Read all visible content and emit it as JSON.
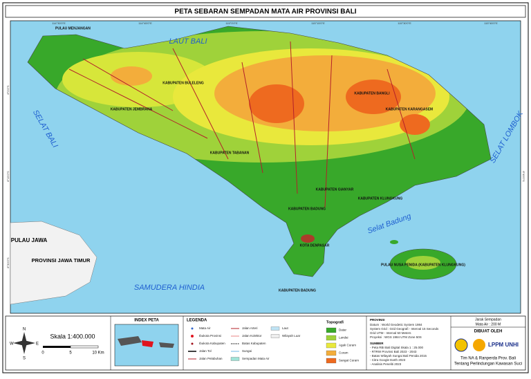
{
  "title": "PETA SEBARAN SEMPADAN MATA AIR PROVINSI BALI",
  "map": {
    "seas": [
      "LAUT BALI",
      "SELAT BALI",
      "SAMUDERA HINDIA",
      "SELAT LOMBOK",
      "Selat Badung"
    ],
    "java": [
      "PULAU JAWA",
      "PROVINSI JAWA TIMUR"
    ],
    "regions": [
      "PULAU MENJANGAN",
      "KABUPATEN BULELENG",
      "KABUPATEN JEMBRANA",
      "KABUPATEN TABANAN",
      "KABUPATEN BANGLI",
      "KABUPATEN KARANGASEM",
      "KABUPATEN GIANYAR",
      "KABUPATEN KLUNGKUNG",
      "KABUPATEN BADUNG",
      "KOTA DENPASAR",
      "PULAU NUSA PENIDA (KABUPATEN KLUNGKUNG)",
      "KABUPATEN BADUNG"
    ],
    "lon_ticks": [
      "114°30'0\"E",
      "114°45'0\"E",
      "115°0'0\"E",
      "115°15'0\"E",
      "115°30'0\"E",
      "115°45'0\"E"
    ],
    "lat_ticks": [
      "8°0'0\"S",
      "8°15'0\"S",
      "8°30'0\"S",
      "8°45'0\"S"
    ]
  },
  "scale": {
    "text": "Skala 1:400.000",
    "labels": [
      "0",
      "5",
      "10 Km"
    ]
  },
  "index": {
    "title": "INDEX PETA"
  },
  "legend": {
    "title": "LEGENDA",
    "items": [
      "Mata Air",
      "Ibukota Provinsi",
      "Ibukota Kabupaten",
      "Jalan Tol",
      "Jalan Pelabuhan",
      "Jalan Arteri",
      "Jalan Kolektor",
      "Batas Kabupaten",
      "Sungai",
      "Sempadan Mata Air",
      "Laut",
      "Wilayah Luar"
    ],
    "topo_title": "Topografi",
    "topo": [
      "Datar",
      "Landai",
      "Agak Curam",
      "Curam",
      "Sangat Curam"
    ]
  },
  "info": {
    "heading": "PROVINSI",
    "rows": [
      "Datum : World Geodetic System 1984",
      "System Grid : Grid Geografi - Interval 15 Seconds",
      "Grid UTM - Interval 50 Meters",
      "Proyeksi : WGS 1984 UTM Zone 50S"
    ],
    "source_heading": "SUMBER",
    "sources": [
      "- Peta RBI Bali Digital Skala 1 : 25.000",
      "- RTRW Provinsi Bali 2023 - 2043",
      "- Batas Wilayah Sungai Bali Penida 2015",
      "- Citra Google Earth 2023",
      "- Analisis Peneliti 2023"
    ]
  },
  "credit": {
    "distance_title": "Jarak Sempadan",
    "distance": "Mata Air : 200 M",
    "made_by": "DIBUAT OLEH",
    "org": "LPPM UNHI",
    "team": [
      "Tim NA & Ranperda Prov. Bali",
      "Tentang Perlindungan Kawasan Suci"
    ]
  }
}
